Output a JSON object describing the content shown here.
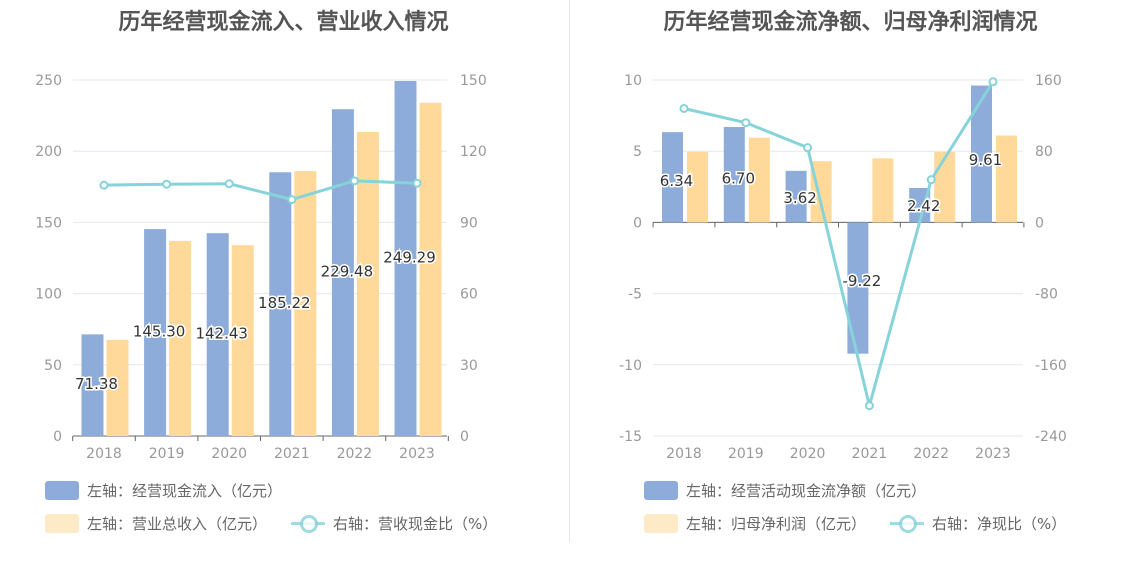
{
  "colors": {
    "bar1": "#8eacd9",
    "bar2": "#ffd999",
    "line": "#86d3d9",
    "grid": "#e4e7ee",
    "axis": "#999999",
    "label": "#333333"
  },
  "chart_data": [
    {
      "type": "bar",
      "title": "历年经营现金流入、营业收入情况",
      "categories": [
        "2018",
        "2019",
        "2020",
        "2021",
        "2022",
        "2023"
      ],
      "left_axis": {
        "ticks": [
          "0",
          "50",
          "100",
          "150",
          "200",
          "250"
        ],
        "ylim": [
          0,
          250
        ]
      },
      "right_axis": {
        "ticks": [
          "0",
          "30",
          "60",
          "90",
          "120",
          "150"
        ],
        "ylim": [
          0,
          150
        ]
      },
      "series": [
        {
          "name": "左轴：经营现金流入（亿元）",
          "type": "bar",
          "axis": "left",
          "values": [
            71.38,
            145.3,
            142.43,
            185.22,
            229.48,
            249.29
          ],
          "labels": [
            "71.38",
            "145.30",
            "142.43",
            "185.22",
            "229.48",
            "249.29"
          ]
        },
        {
          "name": "左轴：营业总收入（亿元）",
          "type": "bar",
          "axis": "left",
          "values": [
            67.5,
            137,
            134,
            186,
            213.5,
            234
          ]
        },
        {
          "name": "右轴：营收现金比（%）",
          "type": "line",
          "axis": "right",
          "values": [
            105.7,
            106.1,
            106.3,
            99.6,
            107.5,
            106.5
          ]
        }
      ],
      "legend": [
        {
          "label": "左轴：经营现金流入（亿元）",
          "kind": "bar1"
        },
        {
          "label": "左轴：营业总收入（亿元）",
          "kind": "bar2"
        },
        {
          "label": "右轴：营收现金比（%）",
          "kind": "line"
        }
      ],
      "legend_position": "bottom-left"
    },
    {
      "type": "bar",
      "title": "历年经营现金流净额、归母净利润情况",
      "categories": [
        "2018",
        "2019",
        "2020",
        "2021",
        "2022",
        "2023"
      ],
      "left_axis": {
        "ticks": [
          "-15",
          "-10",
          "-5",
          "0",
          "5",
          "10"
        ],
        "ylim": [
          -15,
          10
        ]
      },
      "right_axis": {
        "ticks": [
          "-240",
          "-160",
          "-80",
          "0",
          "80",
          "160"
        ],
        "ylim": [
          -240,
          160
        ]
      },
      "series": [
        {
          "name": "左轴：经营活动现金流净额（亿元）",
          "type": "bar",
          "axis": "left",
          "values": [
            6.34,
            6.7,
            3.62,
            -9.22,
            2.42,
            9.61
          ],
          "labels": [
            "6.34",
            "6.70",
            "3.62",
            "-9.22",
            "2.42",
            "9.61"
          ]
        },
        {
          "name": "左轴：归母净利润（亿元）",
          "type": "bar",
          "axis": "left",
          "values": [
            4.95,
            5.95,
            4.3,
            4.5,
            4.95,
            6.1
          ]
        },
        {
          "name": "右轴：净现比（%）",
          "type": "line",
          "axis": "right",
          "values": [
            128,
            112,
            84,
            -206,
            48,
            158
          ]
        }
      ],
      "legend": [
        {
          "label": "左轴：经营活动现金流净额（亿元）",
          "kind": "bar1"
        },
        {
          "label": "左轴：归母净利润（亿元）",
          "kind": "bar2"
        },
        {
          "label": "右轴：净现比（%）",
          "kind": "line"
        }
      ],
      "legend_position": "bottom-left"
    }
  ]
}
